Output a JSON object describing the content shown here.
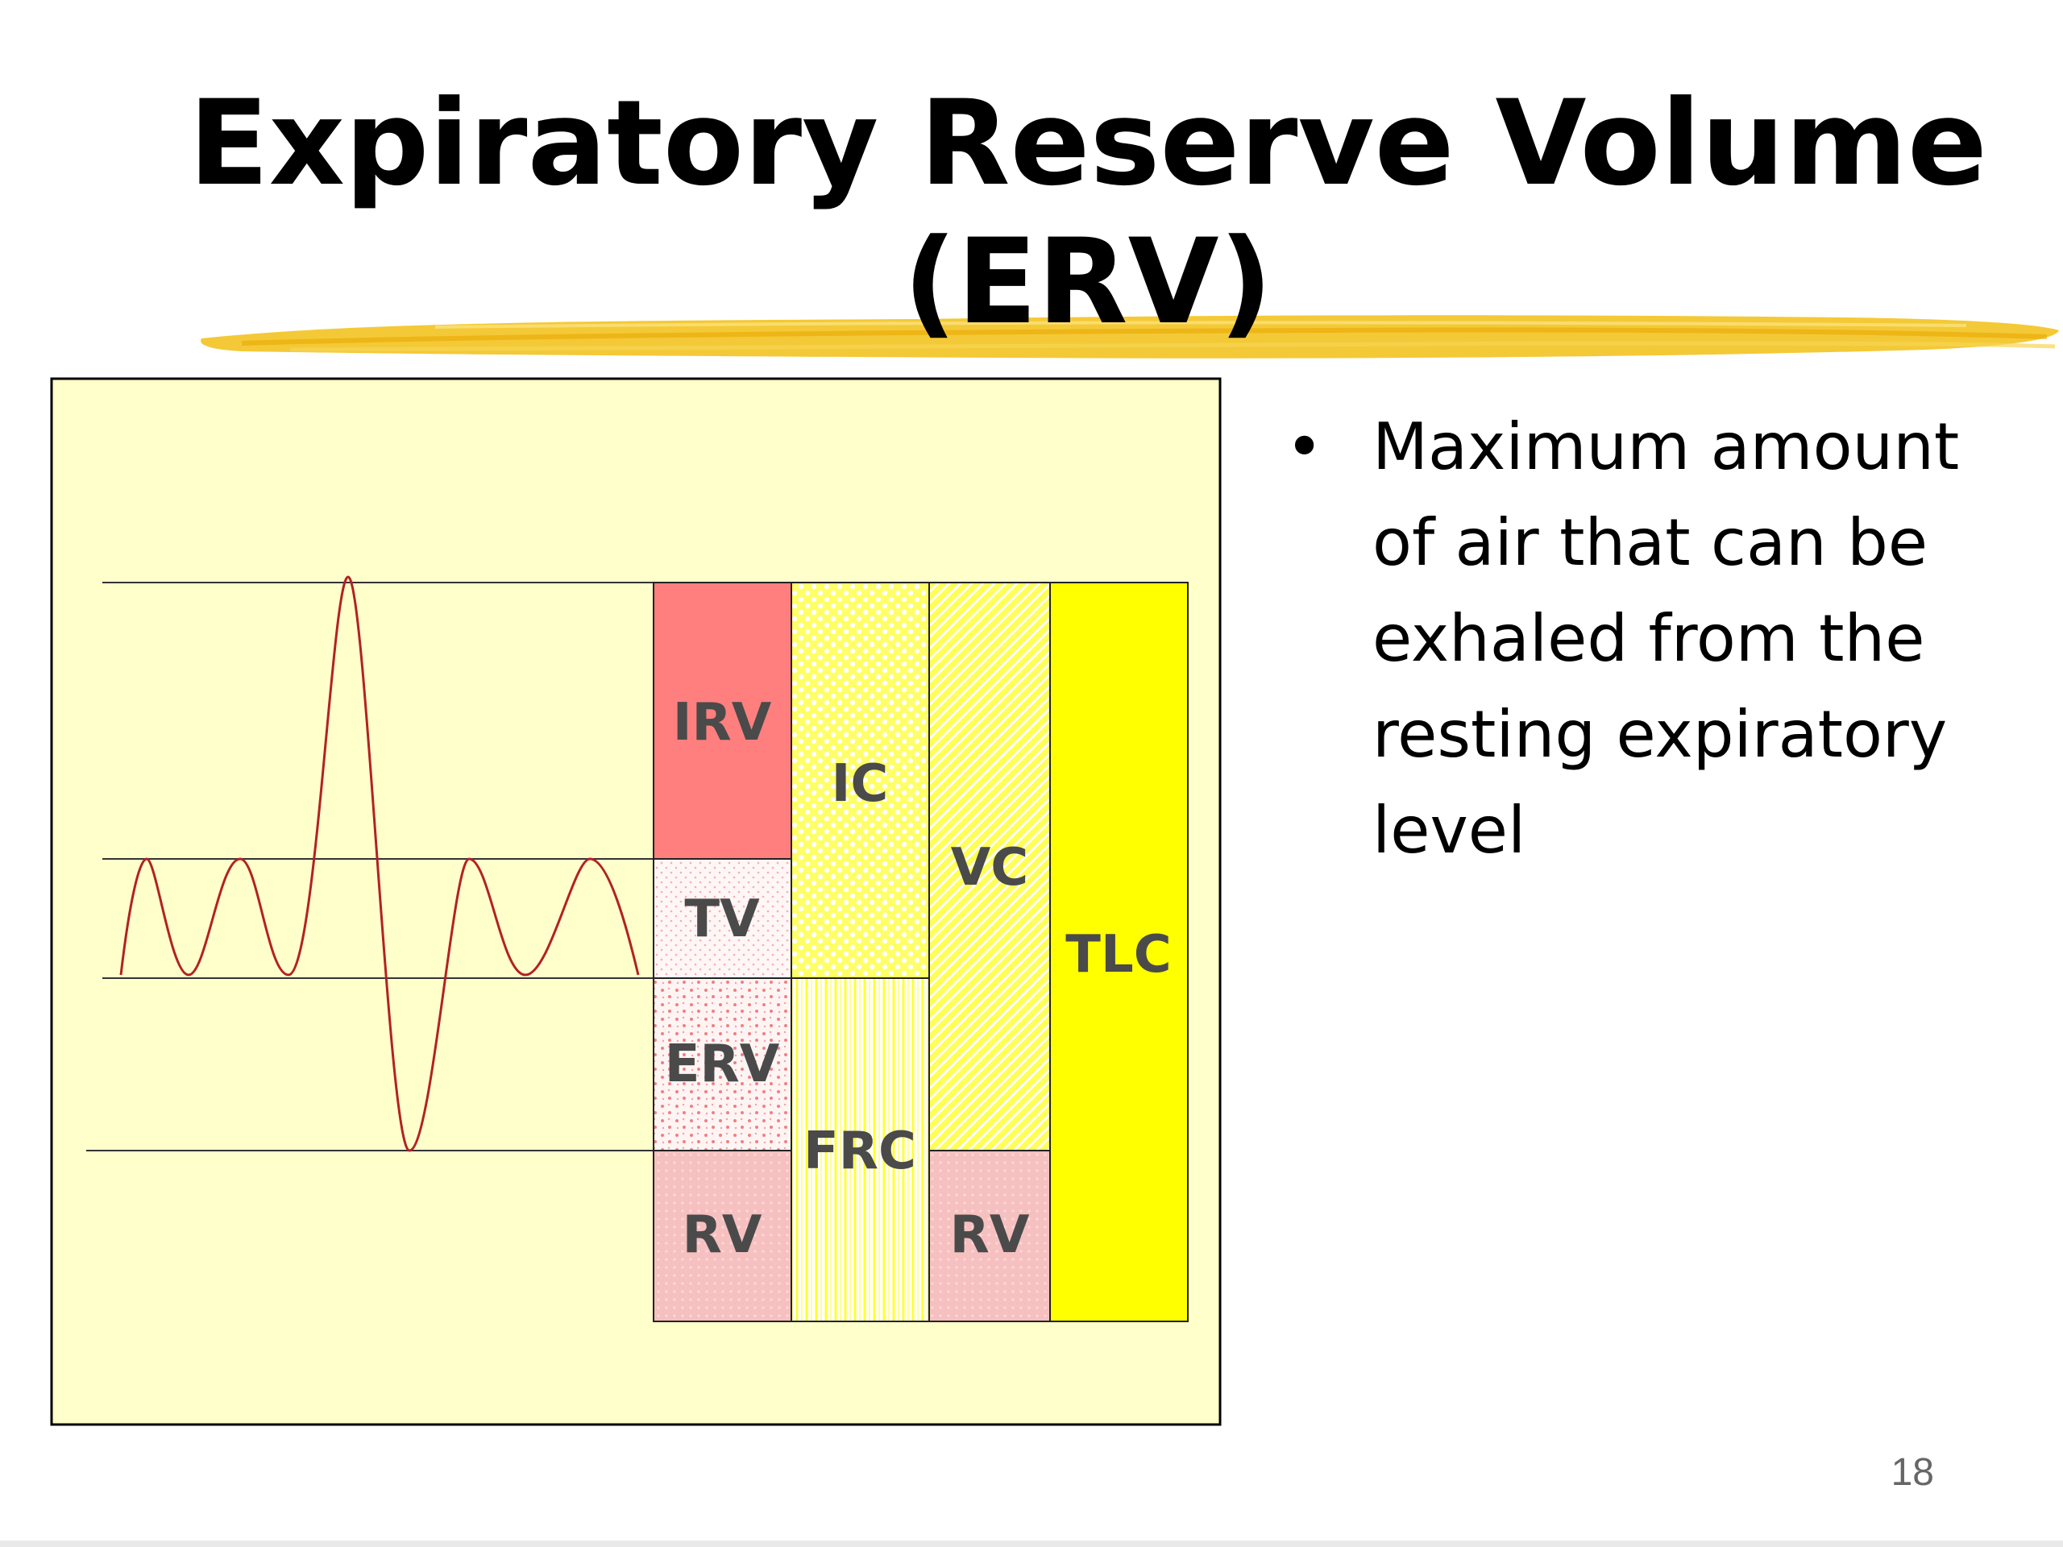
{
  "slide": {
    "title": "Expiratory Reserve Volume (ERV)",
    "bullets": [
      "Maximum amount of air that can be exhaled from the resting expiratory level"
    ],
    "page_number": "18"
  },
  "diagram": {
    "labels": {
      "irv": "IRV",
      "tv": "TV",
      "erv": "ERV",
      "rv_left": "RV",
      "ic": "IC",
      "frc": "FRC",
      "vc": "VC",
      "rv_right": "RV",
      "tlc": "TLC"
    }
  },
  "colors": {
    "title_underline": "#f2c014",
    "panel_background": "#ffffcc",
    "irv_fill": "#ff7f7f",
    "rv_fill": "#f7c0c0",
    "tv_fill": "#fff0f0",
    "tlc_fill": "#ffff00",
    "ic_fill": "#ffff66",
    "trace_color": "#b22222"
  }
}
